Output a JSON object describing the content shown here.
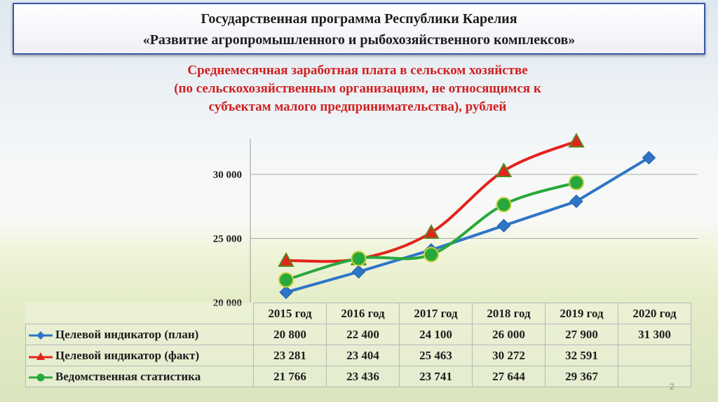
{
  "header": {
    "line1": "Государственная программа Республики Карелия",
    "line2": "«Развитие агропромышленного и рыбохозяйственного комплексов»"
  },
  "page_number": "2",
  "chart_data": {
    "type": "line",
    "title_lines": [
      "Среднемесячная заработная плата в сельском хозяйстве",
      "(по сельскохозяйственным организациям, не относящимся к",
      "субъектам малого предпринимательства), рублей"
    ],
    "categories": [
      "2015 год",
      "2016 год",
      "2017 год",
      "2018 год",
      "2019 год",
      "2020 год"
    ],
    "ylim": [
      20000,
      31500
    ],
    "yticks": [
      20000,
      25000,
      30000
    ],
    "ytick_labels": [
      "20 000",
      "25 000",
      "30 000"
    ],
    "grid": true,
    "series": [
      {
        "name": "Целевой индикатор (план)",
        "marker": "diamond",
        "color": "#2e75c8",
        "values": [
          20800,
          22400,
          24100,
          26000,
          27900,
          31300
        ],
        "labels": [
          "20 800",
          "22 400",
          "24 100",
          "26 000",
          "27 900",
          "31 300"
        ]
      },
      {
        "name": "Целевой индикатор (факт)",
        "marker": "triangle",
        "color": "#e4231b",
        "values": [
          23281,
          23404,
          25463,
          30272,
          32591,
          null
        ],
        "labels": [
          "23 281",
          "23 404",
          "25 463",
          "30 272",
          "32 591",
          ""
        ]
      },
      {
        "name": "Ведомственная статистика",
        "marker": "circle",
        "color": "#27a83c",
        "values": [
          21766,
          23436,
          23741,
          27644,
          29367,
          null
        ],
        "labels": [
          "21 766",
          "23 436",
          "23 741",
          "27 644",
          "29 367",
          ""
        ]
      }
    ]
  }
}
